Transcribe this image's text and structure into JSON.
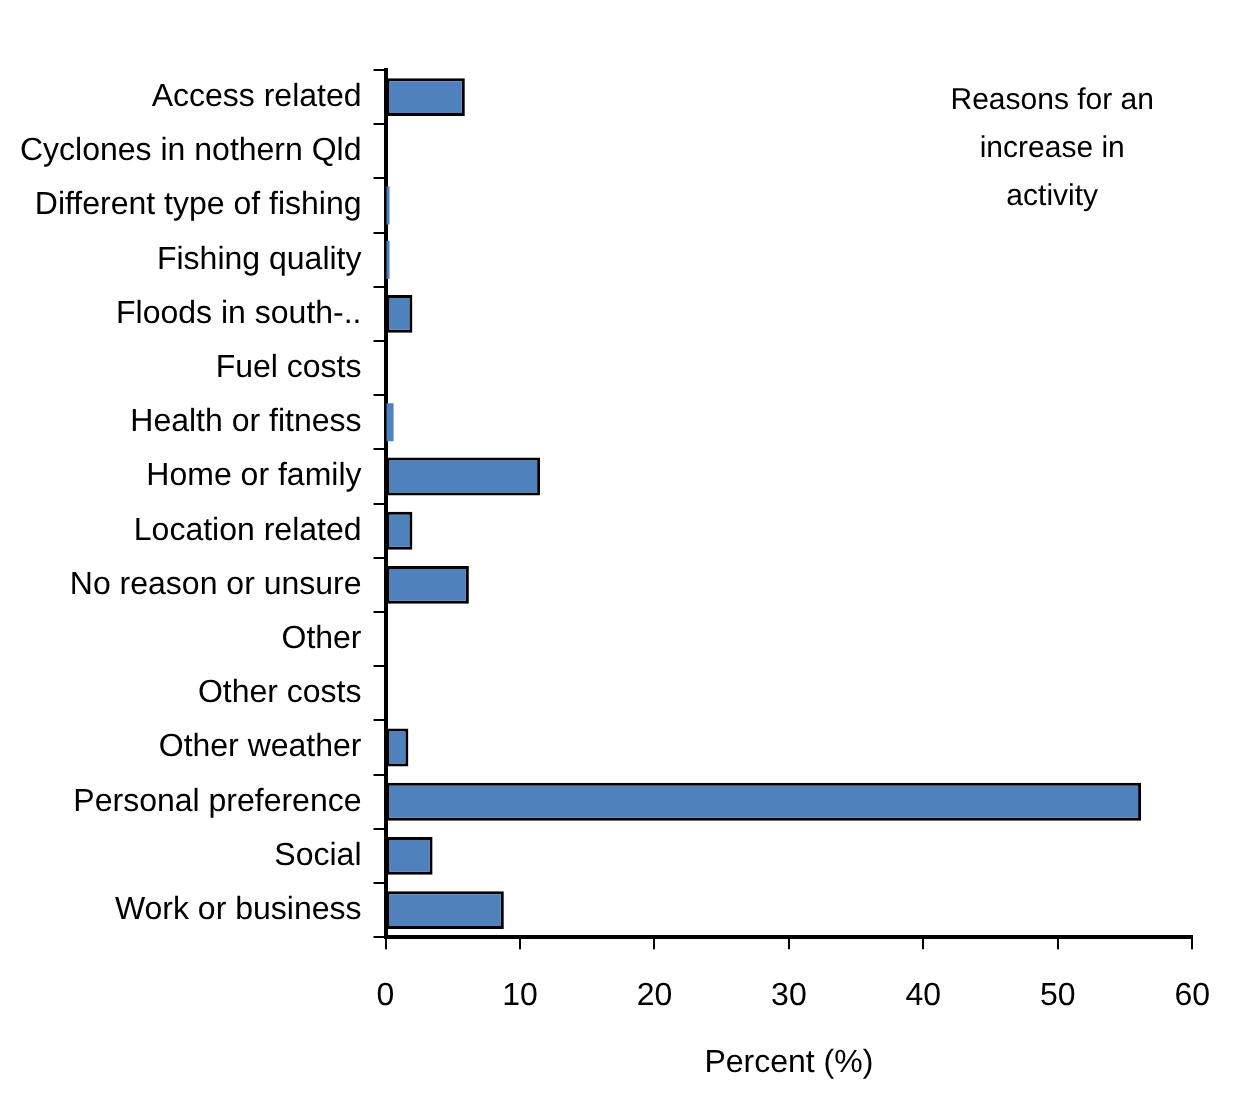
{
  "chart_data": {
    "type": "bar",
    "orientation": "horizontal",
    "xlabel": "Percent (%)",
    "annotations": [
      "Reasons for an increase in activity"
    ],
    "categories": [
      "Access related",
      "Cyclones in nothern Qld",
      "Different type of fishing",
      "Fishing quality",
      "Floods in south-..",
      "Fuel costs",
      "Health or fitness",
      "Home or family",
      "Location related",
      "No reason or unsure",
      "Other",
      "Other costs",
      "Other weather",
      "Personal preference",
      "Social",
      "Work or business"
    ],
    "values": [
      5.9,
      0,
      0.3,
      0.3,
      2.0,
      0,
      0.6,
      11.5,
      2.0,
      6.2,
      0,
      0,
      1.7,
      56.2,
      3.5,
      8.8
    ],
    "color": "#4f81bd",
    "xlim": [
      0,
      60
    ],
    "xticks": [
      0,
      10,
      20,
      30,
      40,
      50,
      60
    ],
    "grid": false,
    "legend": false
  }
}
